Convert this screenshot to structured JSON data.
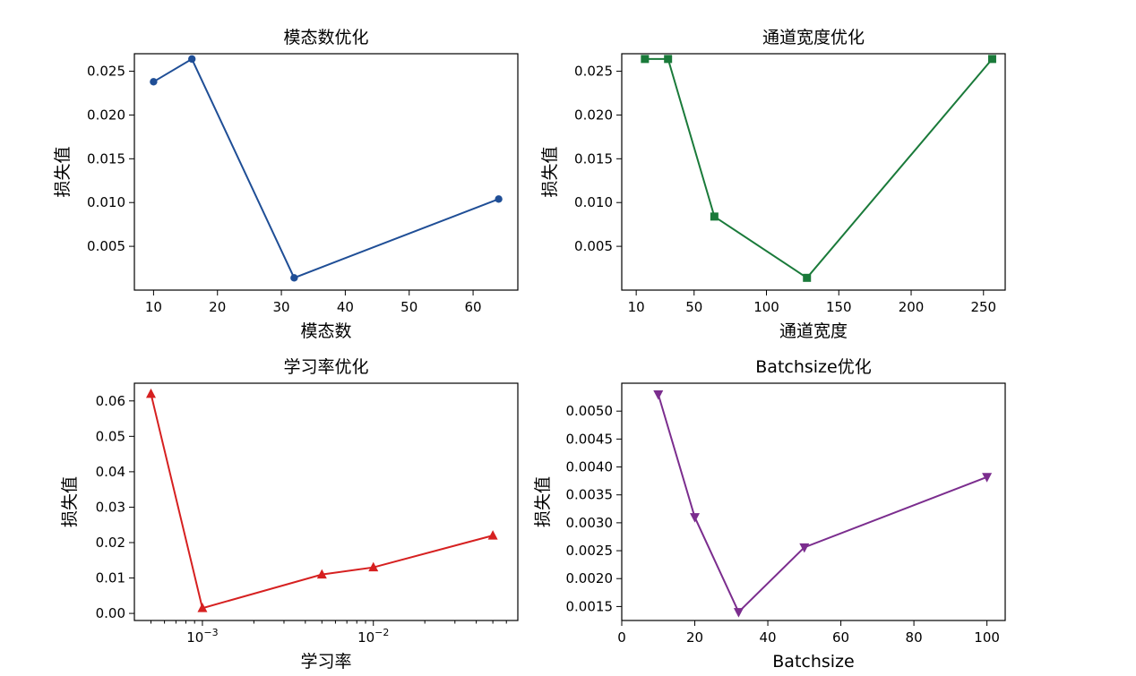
{
  "chart_data": [
    {
      "type": "line",
      "title": "模态数优化",
      "xlabel": "模态数",
      "ylabel": "损失值",
      "x_scale": "linear",
      "xlim": [
        7,
        67
      ],
      "ylim": [
        0.0,
        0.027
      ],
      "x_ticks": [
        10,
        20,
        30,
        40,
        50,
        60
      ],
      "x_tick_labels": [
        "10",
        "20",
        "30",
        "40",
        "50",
        "60"
      ],
      "y_ticks": [
        0.005,
        0.01,
        0.015,
        0.02,
        0.025
      ],
      "y_tick_labels": [
        "0.005",
        "0.010",
        "0.015",
        "0.020",
        "0.025"
      ],
      "color": "#1f4e96",
      "marker": "circle",
      "series": [
        {
          "x": [
            10,
            16,
            32,
            64
          ],
          "y": [
            0.0238,
            0.0264,
            0.0014,
            0.0104
          ]
        }
      ]
    },
    {
      "type": "line",
      "title": "通道宽度优化",
      "xlabel": "通道宽度",
      "ylabel": "损失值",
      "x_scale": "linear",
      "xlim": [
        0,
        265
      ],
      "ylim": [
        0.0,
        0.027
      ],
      "x_ticks": [
        10,
        50,
        100,
        150,
        200,
        250
      ],
      "x_tick_labels": [
        "10",
        "50",
        "100",
        "150",
        "200",
        "250"
      ],
      "y_ticks": [
        0.005,
        0.01,
        0.015,
        0.02,
        0.025
      ],
      "y_tick_labels": [
        "0.005",
        "0.010",
        "0.015",
        "0.020",
        "0.025"
      ],
      "color": "#1a7a3a",
      "marker": "square",
      "series": [
        {
          "x": [
            16,
            32,
            64,
            128,
            256
          ],
          "y": [
            0.0264,
            0.0264,
            0.0084,
            0.0014,
            0.0264
          ]
        }
      ]
    },
    {
      "type": "line",
      "title": "学习率优化",
      "xlabel": "学习率",
      "ylabel": "损失值",
      "x_scale": "log",
      "xlim": [
        0.0004,
        0.07
      ],
      "ylim": [
        -0.002,
        0.065
      ],
      "x_ticks": [
        0.001,
        0.01
      ],
      "x_tick_labels": [
        "10",
        "10"
      ],
      "x_tick_exponents": [
        "−3",
        "−2"
      ],
      "y_ticks": [
        0.0,
        0.01,
        0.02,
        0.03,
        0.04,
        0.05,
        0.06
      ],
      "y_tick_labels": [
        "0.00",
        "0.01",
        "0.02",
        "0.03",
        "0.04",
        "0.05",
        "0.06"
      ],
      "color": "#d62020",
      "marker": "triangle-up",
      "series": [
        {
          "x": [
            0.0005,
            0.001,
            0.005,
            0.01,
            0.05
          ],
          "y": [
            0.062,
            0.0015,
            0.011,
            0.013,
            0.022
          ]
        }
      ]
    },
    {
      "type": "line",
      "title": "Batchsize优化",
      "xlabel": "Batchsize",
      "ylabel": "损失值",
      "x_scale": "linear",
      "xlim": [
        0,
        105
      ],
      "ylim": [
        0.00125,
        0.0055
      ],
      "x_ticks": [
        0,
        20,
        40,
        60,
        80,
        100
      ],
      "x_tick_labels": [
        "0",
        "20",
        "40",
        "60",
        "80",
        "100"
      ],
      "y_ticks": [
        0.0015,
        0.002,
        0.0025,
        0.003,
        0.0035,
        0.004,
        0.0045,
        0.005
      ],
      "y_tick_labels": [
        "0.0015",
        "0.0020",
        "0.0025",
        "0.0030",
        "0.0035",
        "0.0040",
        "0.0045",
        "0.0050"
      ],
      "color": "#7b2d8e",
      "marker": "triangle-down",
      "series": [
        {
          "x": [
            10,
            20,
            32,
            50,
            100
          ],
          "y": [
            0.0053,
            0.0031,
            0.0014,
            0.00256,
            0.00382
          ]
        }
      ]
    }
  ]
}
